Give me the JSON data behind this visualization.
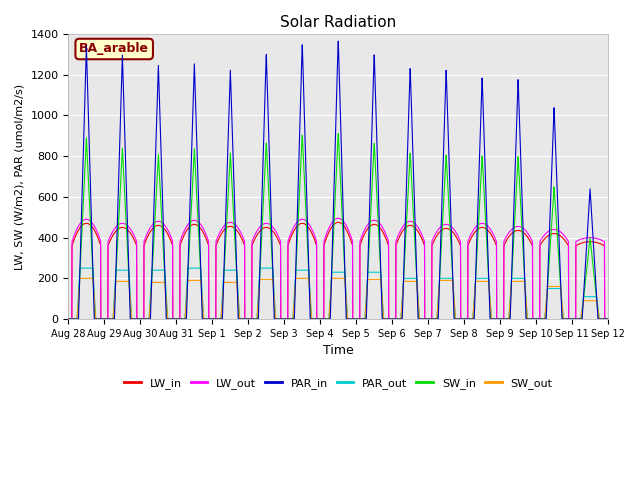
{
  "title": "Solar Radiation",
  "xlabel": "Time",
  "ylabel": "LW, SW (W/m2), PAR (umol/m2/s)",
  "site_label": "BA_arable",
  "ylim": [
    0,
    1400
  ],
  "yticks": [
    0,
    200,
    400,
    600,
    800,
    1000,
    1200,
    1400
  ],
  "xtick_labels": [
    "Aug 28",
    "Aug 29",
    "Aug 30",
    "Aug 31",
    "Sep 1",
    "Sep 2",
    "Sep 3",
    "Sep 4",
    "Sep 5",
    "Sep 6",
    "Sep 7",
    "Sep 8",
    "Sep 9",
    "Sep 10",
    "Sep 11",
    "Sep 12"
  ],
  "num_days": 15,
  "par_in_peaks": [
    1340,
    1300,
    1250,
    1260,
    1230,
    1310,
    1360,
    1380,
    1310,
    1240,
    1230,
    1190,
    1180,
    1040,
    640
  ],
  "par_out_peaks": [
    250,
    240,
    240,
    250,
    240,
    250,
    240,
    230,
    230,
    200,
    200,
    200,
    200,
    150,
    110
  ],
  "sw_in_peaks": [
    890,
    840,
    810,
    840,
    820,
    870,
    910,
    920,
    870,
    820,
    810,
    805,
    800,
    650,
    400
  ],
  "sw_out_peaks": [
    200,
    185,
    180,
    190,
    180,
    195,
    200,
    200,
    195,
    185,
    190,
    185,
    185,
    160,
    90
  ],
  "lw_in_day_peaks": [
    470,
    450,
    460,
    465,
    455,
    450,
    470,
    475,
    465,
    460,
    445,
    450,
    435,
    420,
    380
  ],
  "lw_out_day_peaks": [
    490,
    470,
    480,
    485,
    475,
    470,
    490,
    495,
    485,
    480,
    465,
    470,
    455,
    440,
    400
  ],
  "lw_in_color": "#ee0000",
  "lw_out_color": "#ff00ff",
  "par_in_color": "#0000cc",
  "par_out_color": "#00cccc",
  "sw_in_color": "#00dd00",
  "sw_out_color": "#ff9900",
  "bg_color": "#e8e8e8",
  "fig_bg": "#ffffff",
  "site_box_bg": "#ffffcc",
  "site_box_edge": "#8b0000",
  "grid_color": "#ffffff",
  "resolution": 200
}
